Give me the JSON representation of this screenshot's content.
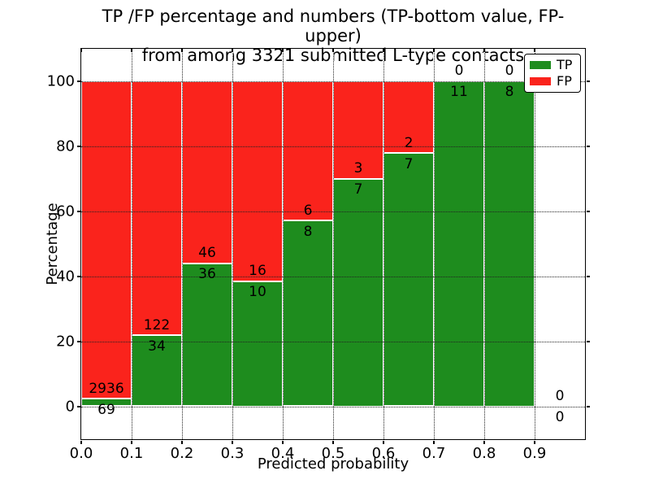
{
  "title": {
    "line1": "TP /FP percentage and numbers (TP-bottom value, FP-upper)",
    "line2": "from among 3321 submitted L-type contacts"
  },
  "axes": {
    "xlabel": "Predicted probability",
    "ylabel": "Percentage",
    "x_tick_labels": [
      "0.0",
      "0.1",
      "0.2",
      "0.3",
      "0.4",
      "0.5",
      "0.6",
      "0.7",
      "0.8",
      "0.9"
    ],
    "y_tick_labels": [
      "0",
      "20",
      "40",
      "60",
      "80",
      "100"
    ],
    "y_tick_values": [
      0,
      20,
      40,
      60,
      80,
      100
    ]
  },
  "legend": {
    "items": [
      {
        "label": "TP",
        "color": "#1e8c1e"
      },
      {
        "label": "FP",
        "color": "#fa231c"
      }
    ]
  },
  "colors": {
    "tp_green": "#1e8c1e",
    "fp_red": "#fa231c",
    "grid": "#222222",
    "text": "#000000",
    "background": "#ffffff"
  },
  "chart_data": {
    "type": "bar",
    "stacked": true,
    "title": "TP /FP percentage and numbers (TP-bottom value, FP-upper) from among 3321 submitted L-type contacts",
    "xlabel": "Predicted probability",
    "ylabel": "Percentage",
    "xlim": [
      0.0,
      1.0
    ],
    "ylim": [
      -10,
      110
    ],
    "grid": true,
    "legend_position": "upper right",
    "total_contacts": 3321,
    "bin_width": 0.1,
    "categories": [
      "0.0-0.1",
      "0.1-0.2",
      "0.2-0.3",
      "0.3-0.4",
      "0.4-0.5",
      "0.5-0.6",
      "0.6-0.7",
      "0.7-0.8",
      "0.8-0.9",
      "0.9-1.0"
    ],
    "series": [
      {
        "name": "TP",
        "counts": [
          69,
          34,
          36,
          10,
          8,
          7,
          7,
          11,
          8,
          0
        ],
        "percent": [
          2.3,
          21.8,
          43.9,
          38.5,
          57.1,
          70.0,
          77.8,
          100.0,
          100.0,
          0.0
        ]
      },
      {
        "name": "FP",
        "counts": [
          2936,
          122,
          46,
          16,
          6,
          3,
          2,
          0,
          0,
          0
        ],
        "percent": [
          97.7,
          78.2,
          56.1,
          61.5,
          42.9,
          30.0,
          22.2,
          0.0,
          0.0,
          0.0
        ]
      }
    ]
  }
}
